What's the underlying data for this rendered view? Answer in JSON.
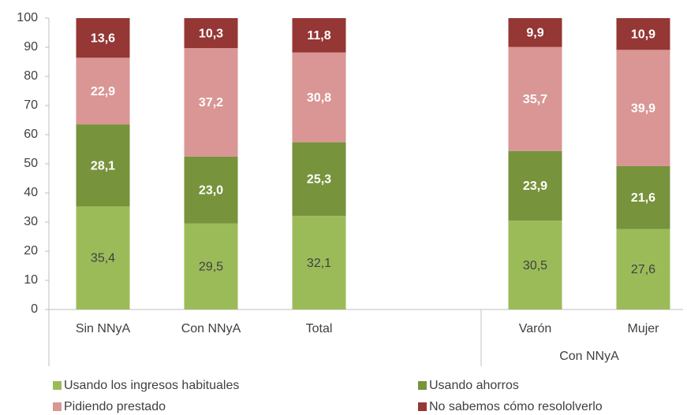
{
  "chart_data": {
    "type": "stacked_bar",
    "categories": [
      "Sin NNyA",
      "Con NNyA",
      "Total",
      null,
      "Varón",
      "Mujer"
    ],
    "group_label": "Con NNyA",
    "series": [
      {
        "name": "Usando los ingresos habituales",
        "color": "#9bbb59",
        "values": [
          35.4,
          29.5,
          32.1,
          null,
          30.5,
          27.6
        ],
        "value_labels": [
          "35,4",
          "29,5",
          "32,1",
          null,
          "30,5",
          "27,6"
        ]
      },
      {
        "name": "Usando ahorros",
        "color": "#77933c",
        "values": [
          28.1,
          23.0,
          25.3,
          null,
          23.9,
          21.6
        ],
        "value_labels": [
          "28,1",
          "23,0",
          "25,3",
          null,
          "23,9",
          "21,6"
        ]
      },
      {
        "name": "Pidiendo prestado",
        "color": "#d99694",
        "values": [
          22.9,
          37.2,
          30.8,
          null,
          35.7,
          39.9
        ],
        "value_labels": [
          "22,9",
          "37,2",
          "30,8",
          null,
          "35,7",
          "39,9"
        ]
      },
      {
        "name": "No sabemos cómo resololverlo",
        "color": "#953735",
        "values": [
          13.6,
          10.3,
          11.8,
          null,
          9.9,
          10.9
        ],
        "value_labels": [
          "13,6",
          "10,3",
          "11,8",
          null,
          "9,9",
          "10,9"
        ]
      }
    ],
    "ylim": [
      0,
      100
    ],
    "yticks": [
      0,
      10,
      20,
      30,
      40,
      50,
      60,
      70,
      80,
      90,
      100
    ]
  }
}
